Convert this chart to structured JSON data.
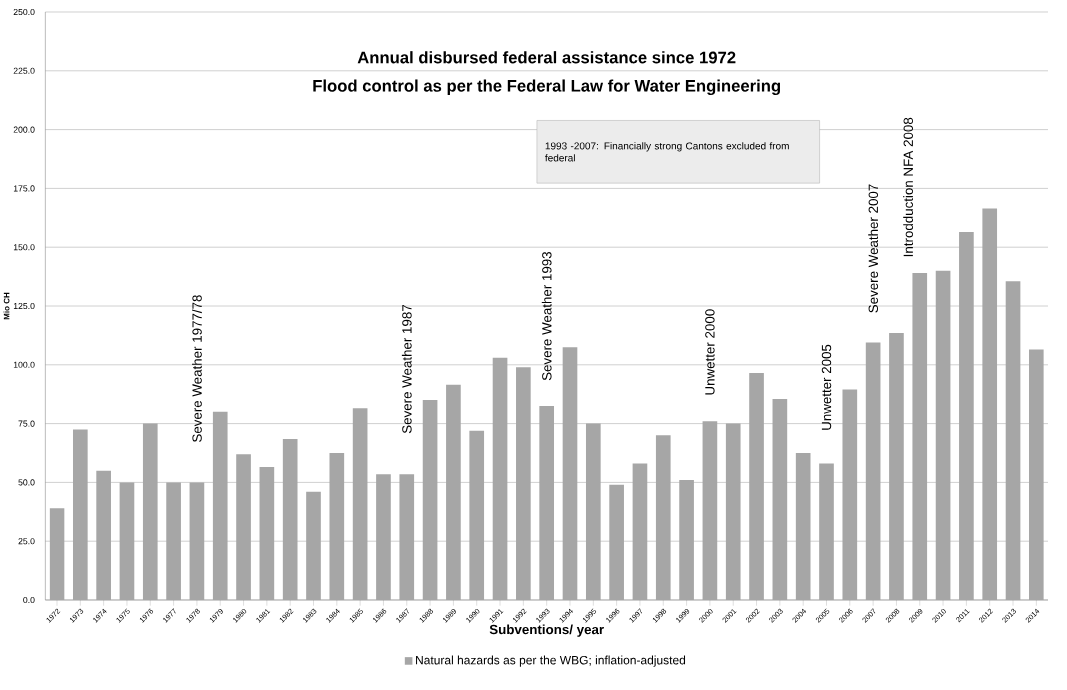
{
  "chart_data": {
    "type": "bar",
    "title": "Annual disbursed federal assistance since 1972",
    "subtitle": "Flood control as per the Federal Law for Water Engineering",
    "xlabel": "Subventions/ year",
    "ylabel": "Mio CH",
    "categories": [
      "1972",
      "1973",
      "1974",
      "1975",
      "1976",
      "1977",
      "1978",
      "1979",
      "1980",
      "1981",
      "1982",
      "1983",
      "1984",
      "1985",
      "1986",
      "1987",
      "1988",
      "1989",
      "1990",
      "1991",
      "1992",
      "1993",
      "1994",
      "1995",
      "1996",
      "1997",
      "1998",
      "1999",
      "2000",
      "2001",
      "2002",
      "2003",
      "2004",
      "2005",
      "2006",
      "2007",
      "2008",
      "2009",
      "2010",
      "2011",
      "2012",
      "2013",
      "2014"
    ],
    "series": [
      {
        "name": "Natural hazards as per the  WBG; inflation-adjusted",
        "color": "#a6a6a6",
        "values": [
          39,
          72.5,
          55,
          50,
          75,
          50,
          50,
          80,
          62,
          56.5,
          68.5,
          46,
          62.5,
          81.5,
          53.5,
          53.5,
          85,
          91.5,
          72,
          103,
          99,
          82.5,
          107.5,
          75,
          49,
          58,
          70,
          51,
          76,
          75,
          96.5,
          85.5,
          62.5,
          58,
          89.5,
          109.5,
          113.5,
          139,
          140,
          156.5,
          166.5,
          135.5,
          106.5
        ]
      }
    ],
    "ylim": [
      0,
      250
    ],
    "yticks": [
      {
        "value": 0,
        "label": "0.0"
      },
      {
        "value": 25,
        "label": "25.0"
      },
      {
        "value": 50,
        "label": "50.0"
      },
      {
        "value": 75,
        "label": "75.0"
      },
      {
        "value": 100,
        "label": "100.0"
      },
      {
        "value": 125,
        "label": "125.0"
      },
      {
        "value": 150,
        "label": "150.0"
      },
      {
        "value": 175,
        "label": "175.0"
      },
      {
        "value": 200,
        "label": "200.0"
      },
      {
        "value": 225,
        "label": "225.0"
      },
      {
        "value": 250,
        "label": "250.0"
      }
    ],
    "grid": "y",
    "legend": "bottom",
    "annotations": [
      "Severe Weather 1977/78",
      "Severe Weather  1987",
      "Severe Weather  1993",
      "Unwetter 2000",
      "Unwetter 2005",
      "Severe Weather  2007",
      "Introdduction  NFA  2008",
      "1993  -2007:   Financially strong Cantons excluded from federal"
    ]
  }
}
